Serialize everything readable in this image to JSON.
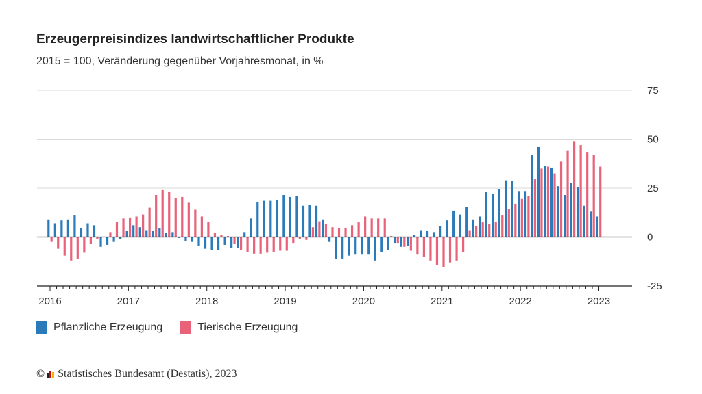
{
  "chart_data": {
    "type": "bar",
    "title": "Erzeugerpreisindizes landwirtschaftlicher Produkte",
    "subtitle": "2015 = 100, Veränderung gegenüber Vorjahresmonat, in %",
    "x_axis": {
      "start": "2016-01",
      "end": "2023-01",
      "tick_labels": [
        "2016",
        "2017",
        "2018",
        "2019",
        "2020",
        "2021",
        "2022",
        "2023"
      ]
    },
    "y_axis": {
      "ylim": [
        -25,
        75
      ],
      "tick_values": [
        -25,
        0,
        25,
        50,
        75
      ],
      "tick_labels": [
        "-25",
        "0",
        "25",
        "50",
        "75"
      ],
      "position": "right"
    },
    "grid": true,
    "legend_position": "bottom-left",
    "categories": [
      "2016-01",
      "2016-02",
      "2016-03",
      "2016-04",
      "2016-05",
      "2016-06",
      "2016-07",
      "2016-08",
      "2016-09",
      "2016-10",
      "2016-11",
      "2016-12",
      "2017-01",
      "2017-02",
      "2017-03",
      "2017-04",
      "2017-05",
      "2017-06",
      "2017-07",
      "2017-08",
      "2017-09",
      "2017-10",
      "2017-11",
      "2017-12",
      "2018-01",
      "2018-02",
      "2018-03",
      "2018-04",
      "2018-05",
      "2018-06",
      "2018-07",
      "2018-08",
      "2018-09",
      "2018-10",
      "2018-11",
      "2018-12",
      "2019-01",
      "2019-02",
      "2019-03",
      "2019-04",
      "2019-05",
      "2019-06",
      "2019-07",
      "2019-08",
      "2019-09",
      "2019-10",
      "2019-11",
      "2019-12",
      "2020-01",
      "2020-02",
      "2020-03",
      "2020-04",
      "2020-05",
      "2020-06",
      "2020-07",
      "2020-08",
      "2020-09",
      "2020-10",
      "2020-11",
      "2020-12",
      "2021-01",
      "2021-02",
      "2021-03",
      "2021-04",
      "2021-05",
      "2021-06",
      "2021-07",
      "2021-08",
      "2021-09",
      "2021-10",
      "2021-11",
      "2021-12",
      "2022-01",
      "2022-02",
      "2022-03",
      "2022-04",
      "2022-05",
      "2022-06",
      "2022-07",
      "2022-08",
      "2022-09",
      "2022-10",
      "2022-11",
      "2022-12",
      "2023-01"
    ],
    "series": [
      {
        "name": "Pflanzliche Erzeugung",
        "color": "#2b7bba",
        "values": [
          9,
          7,
          8.5,
          9,
          11,
          4.5,
          7,
          6,
          -5,
          -4,
          -2.5,
          -1,
          3,
          6,
          5,
          3.5,
          3,
          4.5,
          2,
          2.5,
          -0.5,
          -2,
          -2.5,
          -4.5,
          -6,
          -6.5,
          -6.5,
          -4,
          -5.5,
          -5.5,
          2.5,
          9.5,
          18,
          18.5,
          18.5,
          19,
          21.5,
          20.5,
          21,
          16,
          16.5,
          16,
          9,
          -2.5,
          -11,
          -11,
          -9.5,
          -9,
          -9,
          -9,
          -12,
          -7.5,
          -6.5,
          -3,
          -5,
          -4.5,
          1,
          3.5,
          3,
          2.5,
          5.5,
          8.5,
          13.5,
          11.5,
          15.5,
          9,
          10.5,
          23,
          22,
          24.5,
          29,
          28.5,
          23.5,
          23.5,
          42,
          46,
          36.5,
          35.5,
          26,
          21.5,
          27.5,
          25.5,
          16,
          13,
          10.5
        ]
      },
      {
        "name": "Tierische Erzeugung",
        "color": "#e8637a",
        "values": [
          -2.5,
          -6,
          -9.5,
          -12,
          -11,
          -8,
          -3.5,
          -1,
          0,
          2.5,
          7.5,
          9.5,
          10,
          10.5,
          11.5,
          15,
          21.5,
          24,
          23,
          20,
          20.5,
          17.5,
          14,
          10.5,
          7.5,
          2,
          1,
          0.5,
          -3.5,
          -6.5,
          -7.5,
          -8.5,
          -8.5,
          -8,
          -7.5,
          -7,
          -7,
          -3,
          -1,
          -1.5,
          5,
          8,
          6.5,
          5,
          4.5,
          4.5,
          6,
          7.5,
          10.5,
          9.5,
          9.5,
          9.5,
          0.5,
          -3,
          -5,
          -7,
          -9,
          -10,
          -12,
          -14.5,
          -15.5,
          -13,
          -12,
          -7.5,
          3.5,
          5.5,
          7.5,
          6.5,
          7.5,
          11,
          14.5,
          17,
          19.5,
          21,
          29.5,
          35,
          36,
          32.5,
          38.5,
          44,
          49,
          47,
          43.5,
          42,
          36
        ]
      }
    ]
  },
  "legend": {
    "items": [
      {
        "label": "Pflanzliche Erzeugung",
        "color": "#2b7bba"
      },
      {
        "label": "Tierische Erzeugung",
        "color": "#e8637a"
      }
    ]
  },
  "source": {
    "copyright_symbol": "©",
    "text": "Statistisches Bundesamt (Destatis), 2023"
  }
}
